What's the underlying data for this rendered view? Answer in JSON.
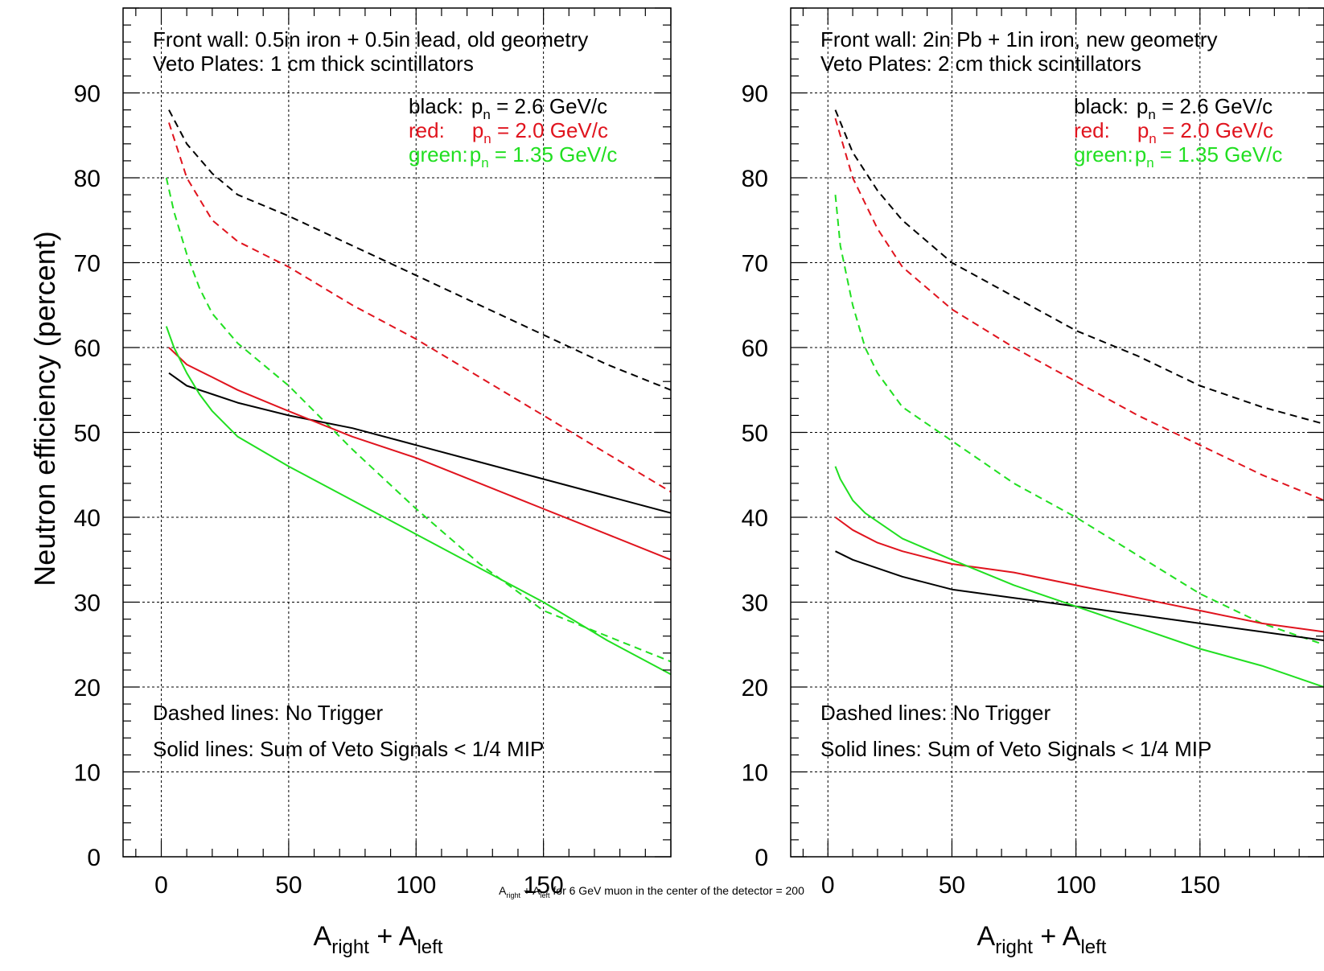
{
  "ylabel": "Neutron efficiency (percent)",
  "footnote": {
    "main1": "A",
    "sub1": "right",
    "mid": " + A",
    "sub2": "left",
    "rest": " for 6 GeV muon in the center of the detector = 200"
  },
  "colors": {
    "black": "#000000",
    "red": "#e0141e",
    "green": "#21df21"
  },
  "chart_data": [
    {
      "type": "line",
      "xlim": [
        -15,
        200
      ],
      "ylim": [
        0,
        100
      ],
      "xticks": [
        0,
        50,
        100,
        150
      ],
      "yticks": [
        0,
        10,
        20,
        30,
        40,
        50,
        60,
        70,
        80,
        90
      ],
      "grid": true,
      "xlabel": {
        "main1": "A",
        "sub1": "right",
        "mid": " + A",
        "sub2": "left"
      },
      "annotations": {
        "wall": "Front wall: 0.5in iron + 0.5in lead, old geometry",
        "veto": "Veto Plates: 1 cm thick scintillators",
        "dashed": "Dashed lines: No Trigger",
        "solid": "Solid lines: Sum of Veto Signals < 1/4 MIP"
      },
      "legend": [
        {
          "label": "black:",
          "p": "p",
          "sub": "n",
          "eq": " = 2.6 GeV/c",
          "color": "#000000"
        },
        {
          "label": "red:",
          "p": "p",
          "sub": "n",
          "eq": " = 2.0 GeV/c",
          "color": "#e0141e"
        },
        {
          "label": "green:",
          "p": "p",
          "sub": "n",
          "eq": " = 1.35 GeV/c",
          "color": "#21df21"
        }
      ],
      "series": [
        {
          "color": "#000000",
          "dashed": true,
          "x": [
            3,
            10,
            20,
            30,
            50,
            75,
            100,
            125,
            150,
            175,
            200
          ],
          "y": [
            88,
            84,
            80.5,
            78,
            75.5,
            72,
            68.5,
            65,
            61.5,
            58,
            55
          ]
        },
        {
          "color": "#e0141e",
          "dashed": true,
          "x": [
            3,
            10,
            20,
            30,
            50,
            75,
            100,
            125,
            150,
            175,
            200
          ],
          "y": [
            86.5,
            80,
            75,
            72.5,
            69.5,
            65,
            61,
            56.5,
            52,
            47.5,
            43
          ]
        },
        {
          "color": "#21df21",
          "dashed": true,
          "x": [
            2,
            5,
            10,
            15,
            20,
            30,
            50,
            75,
            100,
            125,
            150,
            175,
            200
          ],
          "y": [
            80,
            76,
            71,
            67,
            64,
            60.5,
            55.5,
            48,
            41,
            34.5,
            29,
            26,
            23
          ]
        },
        {
          "color": "#000000",
          "dashed": false,
          "x": [
            3,
            10,
            20,
            30,
            50,
            75,
            100,
            125,
            150,
            175,
            200
          ],
          "y": [
            57,
            55.5,
            54.5,
            53.5,
            52,
            50.5,
            48.5,
            46.5,
            44.5,
            42.5,
            40.5
          ]
        },
        {
          "color": "#e0141e",
          "dashed": false,
          "x": [
            3,
            10,
            20,
            30,
            50,
            75,
            100,
            125,
            150,
            175,
            200
          ],
          "y": [
            60,
            58,
            56.5,
            55,
            52.5,
            49.5,
            47,
            44,
            41,
            38,
            35
          ]
        },
        {
          "color": "#21df21",
          "dashed": false,
          "x": [
            2,
            5,
            10,
            15,
            20,
            30,
            50,
            75,
            100,
            125,
            150,
            175,
            200
          ],
          "y": [
            62.5,
            60,
            57,
            54.5,
            52.5,
            49.5,
            46,
            42,
            38,
            34,
            30,
            25.5,
            21.5
          ]
        }
      ]
    },
    {
      "type": "line",
      "xlim": [
        -15,
        200
      ],
      "ylim": [
        0,
        100
      ],
      "xticks": [
        0,
        50,
        100,
        150
      ],
      "yticks": [
        0,
        10,
        20,
        30,
        40,
        50,
        60,
        70,
        80,
        90
      ],
      "grid": true,
      "xlabel": {
        "main1": "A",
        "sub1": "right",
        "mid": " + A",
        "sub2": "left"
      },
      "annotations": {
        "wall": "Front wall: 2in Pb + 1in iron, new geometry",
        "veto": "Veto Plates: 2 cm thick scintillators",
        "dashed": "Dashed lines: No Trigger",
        "solid": "Solid lines: Sum of Veto Signals < 1/4 MIP"
      },
      "legend": [
        {
          "label": "black:",
          "p": "p",
          "sub": "n",
          "eq": " = 2.6 GeV/c",
          "color": "#000000"
        },
        {
          "label": "red:",
          "p": "p",
          "sub": "n",
          "eq": " = 2.0 GeV/c",
          "color": "#e0141e"
        },
        {
          "label": "green:",
          "p": "p",
          "sub": "n",
          "eq": " = 1.35 GeV/c",
          "color": "#21df21"
        }
      ],
      "series": [
        {
          "color": "#000000",
          "dashed": true,
          "x": [
            3,
            10,
            20,
            30,
            50,
            75,
            100,
            125,
            150,
            175,
            200
          ],
          "y": [
            88,
            83,
            78.5,
            75,
            70,
            66,
            62,
            59,
            55.5,
            53,
            51
          ]
        },
        {
          "color": "#e0141e",
          "dashed": true,
          "x": [
            3,
            10,
            20,
            30,
            50,
            75,
            100,
            125,
            150,
            175,
            200
          ],
          "y": [
            87,
            80,
            74,
            69.5,
            64.5,
            60,
            56,
            52,
            48.5,
            45,
            42
          ]
        },
        {
          "color": "#21df21",
          "dashed": true,
          "x": [
            3,
            5,
            10,
            15,
            20,
            30,
            50,
            75,
            100,
            125,
            150,
            175,
            200
          ],
          "y": [
            78,
            72,
            65,
            60,
            57,
            53,
            49,
            44,
            40,
            35.5,
            31,
            27.5,
            25
          ]
        },
        {
          "color": "#000000",
          "dashed": false,
          "x": [
            3,
            10,
            20,
            30,
            50,
            75,
            100,
            125,
            150,
            175,
            200
          ],
          "y": [
            36,
            35,
            34,
            33,
            31.5,
            30.5,
            29.5,
            28.5,
            27.5,
            26.5,
            25.5
          ]
        },
        {
          "color": "#e0141e",
          "dashed": false,
          "x": [
            3,
            10,
            20,
            30,
            50,
            75,
            100,
            125,
            150,
            175,
            200
          ],
          "y": [
            40,
            38.5,
            37,
            36,
            34.5,
            33.5,
            32,
            30.5,
            29,
            27.5,
            26.5
          ]
        },
        {
          "color": "#21df21",
          "dashed": false,
          "x": [
            3,
            5,
            10,
            15,
            20,
            30,
            50,
            75,
            100,
            125,
            150,
            175,
            200
          ],
          "y": [
            46,
            44.5,
            42,
            40.5,
            39.5,
            37.5,
            35,
            32,
            29.5,
            27,
            24.5,
            22.5,
            20
          ]
        }
      ]
    }
  ]
}
